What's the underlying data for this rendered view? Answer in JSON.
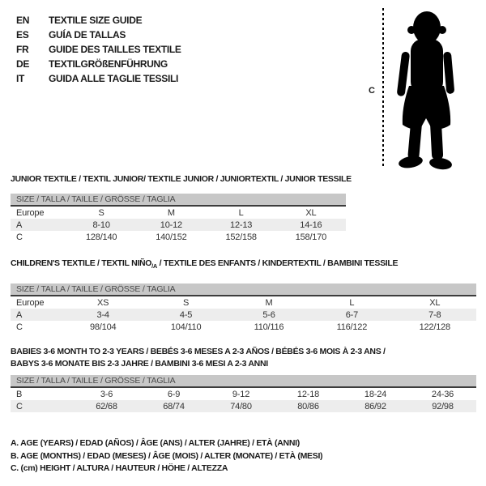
{
  "colors": {
    "size_bar_bg": "#c7c7c7",
    "size_bar_text": "#4b4b4b",
    "shaded_row_bg": "#ededed",
    "rule": "#3c3c3c",
    "silhouette": "#000000"
  },
  "languages": [
    {
      "code": "EN",
      "title": "TEXTILE SIZE GUIDE"
    },
    {
      "code": "ES",
      "title": "GUÍA DE TALLAS"
    },
    {
      "code": "FR",
      "title": "GUIDE DES TAILLES TEXTILE"
    },
    {
      "code": "DE",
      "title": "TEXTILGRÖßENFÜHRUNG"
    },
    {
      "code": "IT",
      "title": "GUIDA ALLE TAGLIE TESSILI"
    }
  ],
  "figure": {
    "label": "C"
  },
  "tables": [
    {
      "title": "JUNIOR TEXTILE / TEXTIL JUNIOR/ TEXTILE JUNIOR / JUNIORTEXTIL / JUNIOR TESSILE",
      "size_bar": "SIZE / TALLA / TAILLE / GRÖSSE / TAGLIA",
      "rows": [
        [
          "Europe",
          "S",
          "M",
          "L",
          "XL"
        ],
        [
          "A",
          "8-10",
          "10-12",
          "12-13",
          "14-16"
        ],
        [
          "C",
          "128/140",
          "140/152",
          "152/158",
          "158/170"
        ]
      ]
    },
    {
      "title_prefix": "CHILDREN'S TEXTILE / TEXTIL NIÑO",
      "title_sub": "/A",
      "title_suffix": " / TEXTILE DES ENFANTS / KINDERTEXTIL / BAMBINI TESSILE",
      "size_bar": "SIZE / TALLA / TAILLE / GRÖSSE / TAGLIA",
      "rows": [
        [
          "Europe",
          "XS",
          "S",
          "M",
          "L",
          "XL"
        ],
        [
          "A",
          "3-4",
          "4-5",
          "5-6",
          "6-7",
          "7-8"
        ],
        [
          "C",
          "98/104",
          "104/110",
          "110/116",
          "116/122",
          "122/128"
        ]
      ]
    },
    {
      "title_line1": "BABIES 3-6 MONTH TO 2-3 YEARS / BEBÉS 3-6 MESES A 2-3 AÑOS / BÉBÉS 3-6 MOIS À 2-3 ANS /",
      "title_line2": "BABYS 3-6 MONATE BIS 2-3 JAHRE / BAMBINI 3-6 MESI A 2-3 ANNI",
      "size_bar": "SIZE / TALLA / TAILLE / GRÖSSE / TAGLIA",
      "rows": [
        [
          "B",
          "3-6",
          "6-9",
          "9-12",
          "12-18",
          "18-24",
          "24-36"
        ],
        [
          "C",
          "62/68",
          "68/74",
          "74/80",
          "80/86",
          "86/92",
          "92/98"
        ]
      ]
    }
  ],
  "legend": [
    "A. AGE (YEARS) / EDAD (AÑOS) / ÂGE (ANS) / ALTER (JAHRE) / ETÀ (ANNI)",
    "B. AGE (MONTHS) / EDAD (MESES) / ÂGE (MOIS) / ALTER (MONATE) / ETÀ (MESI)",
    "C. (cm) HEIGHT / ALTURA / HAUTEUR / HÖHE / ALTEZZA"
  ]
}
